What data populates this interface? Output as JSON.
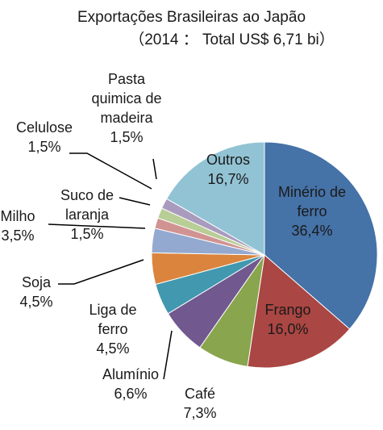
{
  "chart_data": {
    "type": "pie",
    "title": "Exportações Brasileiras ao Japão",
    "subtitle": "（2014 ： Total US$ 6,71 bi）",
    "categories": [
      "Minério de ferro",
      "Frango",
      "Café",
      "Alumínio",
      "Liga de ferro",
      "Soja",
      "Milho",
      "Suco de laranja",
      "Celulose",
      "Pasta quimica de madeira",
      "Outros"
    ],
    "values": [
      36.4,
      16.0,
      7.3,
      6.6,
      4.5,
      4.5,
      3.5,
      1.5,
      1.5,
      1.5,
      16.7
    ],
    "value_labels": [
      "36,4%",
      "16,0%",
      "7,3%",
      "6,6%",
      "4,5%",
      "4,5%",
      "3,5%",
      "1,5%",
      "1,5%",
      "1,5%",
      "16,7%"
    ],
    "colors": [
      "#4572a7",
      "#aa4643",
      "#89a54e",
      "#71588f",
      "#4198af",
      "#db843d",
      "#93a9cf",
      "#d19392",
      "#b9cd96",
      "#a99bbd",
      "#92c3d4"
    ]
  }
}
